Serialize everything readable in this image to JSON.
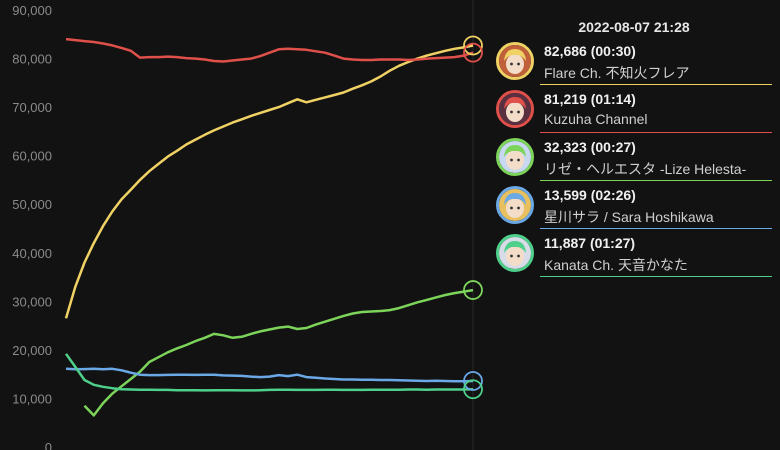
{
  "chart_data": {
    "type": "line",
    "ylim": [
      0,
      90000
    ],
    "yticks": [
      0,
      10000,
      20000,
      30000,
      40000,
      50000,
      60000,
      70000,
      80000,
      90000
    ],
    "ytick_labels": [
      "0",
      "10,000",
      "20,000",
      "30,000",
      "40,000",
      "50,000",
      "60,000",
      "70,000",
      "80,000",
      "90,000"
    ],
    "grid": false,
    "series": [
      {
        "name": "Flare Ch. 不知火フレア",
        "color": "#f0d264",
        "values": [
          26500,
          33000,
          38000,
          42000,
          45500,
          48500,
          51000,
          53000,
          55000,
          56800,
          58300,
          59800,
          61000,
          62300,
          63300,
          64300,
          65200,
          66000,
          66800,
          67500,
          68200,
          68800,
          69400,
          70000,
          70800,
          71600,
          71000,
          71500,
          72000,
          72500,
          73000,
          73800,
          74500,
          75300,
          76300,
          77500,
          78500,
          79300,
          80000,
          80600,
          81100,
          81600,
          82000,
          82300,
          82686
        ]
      },
      {
        "name": "Kuzuha Channel",
        "color": "#e0504a",
        "values": [
          84000,
          83800,
          83600,
          83400,
          83100,
          82700,
          82200,
          81600,
          80200,
          80300,
          80300,
          80400,
          80300,
          80100,
          80000,
          79800,
          79500,
          79400,
          79600,
          79800,
          80000,
          80500,
          81200,
          81900,
          82000,
          81900,
          81800,
          81500,
          81200,
          80600,
          80000,
          79800,
          79700,
          79700,
          79800,
          79800,
          79800,
          79700,
          79800,
          80000,
          80100,
          80200,
          80300,
          80600,
          81219
        ]
      },
      {
        "name": "リゼ・ヘルエスタ -Lize Helesta-",
        "color": "#7cd45a",
        "values": [
          null,
          null,
          8500,
          6500,
          9000,
          11000,
          12500,
          14000,
          15500,
          17500,
          18500,
          19500,
          20300,
          21000,
          21800,
          22500,
          23300,
          23000,
          22500,
          22700,
          23300,
          23800,
          24200,
          24600,
          24800,
          24300,
          24500,
          25200,
          25800,
          26400,
          27000,
          27500,
          27800,
          27900,
          28000,
          28200,
          28600,
          29200,
          29800,
          30300,
          30800,
          31300,
          31700,
          32000,
          32323
        ]
      },
      {
        "name": "星川サラ / Sara Hoshikawa",
        "color": "#6aa8e6",
        "values": [
          16100,
          16000,
          16050,
          16100,
          16000,
          16100,
          15800,
          15300,
          14900,
          14800,
          14800,
          14850,
          14900,
          14900,
          14850,
          14900,
          14900,
          14750,
          14700,
          14650,
          14500,
          14400,
          14500,
          14800,
          14600,
          14900,
          14400,
          14250,
          14100,
          14000,
          13900,
          13900,
          13850,
          13850,
          13800,
          13800,
          13750,
          13700,
          13650,
          13600,
          13650,
          13600,
          13550,
          13550,
          13599
        ]
      },
      {
        "name": "Kanata Ch. 天音かなた",
        "color": "#4ed08a",
        "values": [
          19200,
          16500,
          13800,
          12800,
          12400,
          12100,
          11900,
          11850,
          11800,
          11800,
          11750,
          11750,
          11700,
          11700,
          11700,
          11650,
          11700,
          11700,
          11700,
          11650,
          11650,
          11700,
          11750,
          11800,
          11800,
          11750,
          11750,
          11750,
          11800,
          11800,
          11750,
          11750,
          11750,
          11800,
          11800,
          11800,
          11800,
          11850,
          11850,
          11800,
          11850,
          11850,
          11850,
          11850,
          11887
        ]
      }
    ]
  },
  "tooltip": {
    "time": "2022-08-07 21:28",
    "entries": [
      {
        "line1": "82,686 (00:30)",
        "name": "Flare Ch. 不知火フレア",
        "color": "#f0d264",
        "avatar": "flare-avatar-icon",
        "avatar_bg": "#c0603a"
      },
      {
        "line1": "81,219 (01:14)",
        "name": "Kuzuha Channel",
        "color": "#e0504a",
        "avatar": "kuzuha-avatar-icon",
        "avatar_bg": "#5a3040"
      },
      {
        "line1": "32,323 (00:27)",
        "name": "リゼ・ヘルエスタ -Lize Helesta-",
        "color": "#7cd45a",
        "avatar": "lize-avatar-icon",
        "avatar_bg": "#c8d8f0"
      },
      {
        "line1": "13,599 (02:26)",
        "name": "星川サラ / Sara Hoshikawa",
        "color": "#6aa8e6",
        "avatar": "sara-avatar-icon",
        "avatar_bg": "#e8c060"
      },
      {
        "line1": "11,887 (01:27)",
        "name": "Kanata Ch. 天音かなた",
        "color": "#4ed08a",
        "avatar": "kanata-avatar-icon",
        "avatar_bg": "#d8dce8"
      }
    ]
  }
}
